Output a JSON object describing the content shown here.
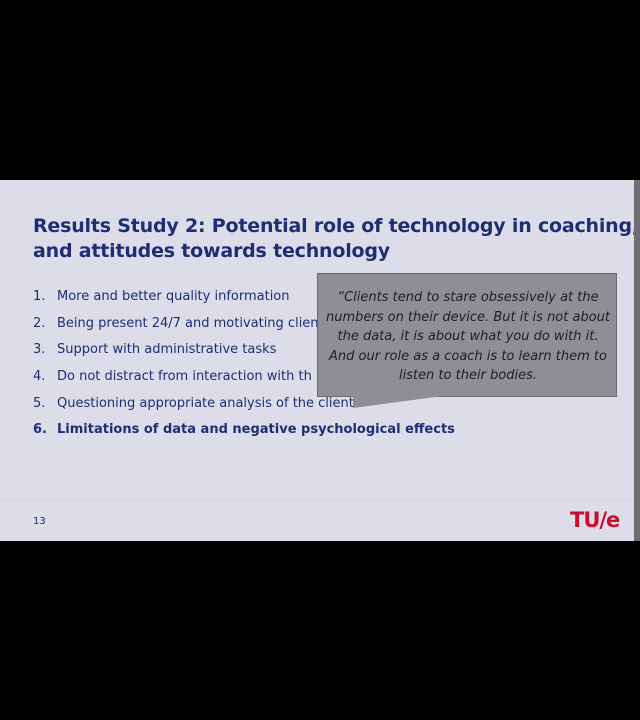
{
  "slide": {
    "title_lines": [
      "Results Study 2: Potential role of technology in coaching,",
      "and attitudes towards technology"
    ],
    "items": [
      {
        "number": "1.",
        "text": "More and better quality information"
      },
      {
        "number": "2.",
        "text": "Being present 24/7 and motivating clien"
      },
      {
        "number": "3.",
        "text": "Support with administrative tasks"
      },
      {
        "number": "4.",
        "text": "Do not distract from interaction with th"
      },
      {
        "number": "5.",
        "text": "Questioning appropriate analysis of the client s"
      },
      {
        "number": "6.",
        "text": "Limitations of data and negative psychological effects"
      }
    ],
    "quote_lines": [
      "“Clients tend to stare obsessively at the",
      "numbers on their device. But it is not about",
      "the data, it is about what you do with it.",
      "And our role as a coach is to learn them to",
      "listen to their bodies."
    ],
    "page_number": "13",
    "logo_text": "TU/e"
  },
  "colors": {
    "title": "#1f2d72",
    "slide_background": "#dcdde8",
    "callout_background": "#8e8f94",
    "logo": "#c8102e",
    "outer_background": "#000000"
  }
}
